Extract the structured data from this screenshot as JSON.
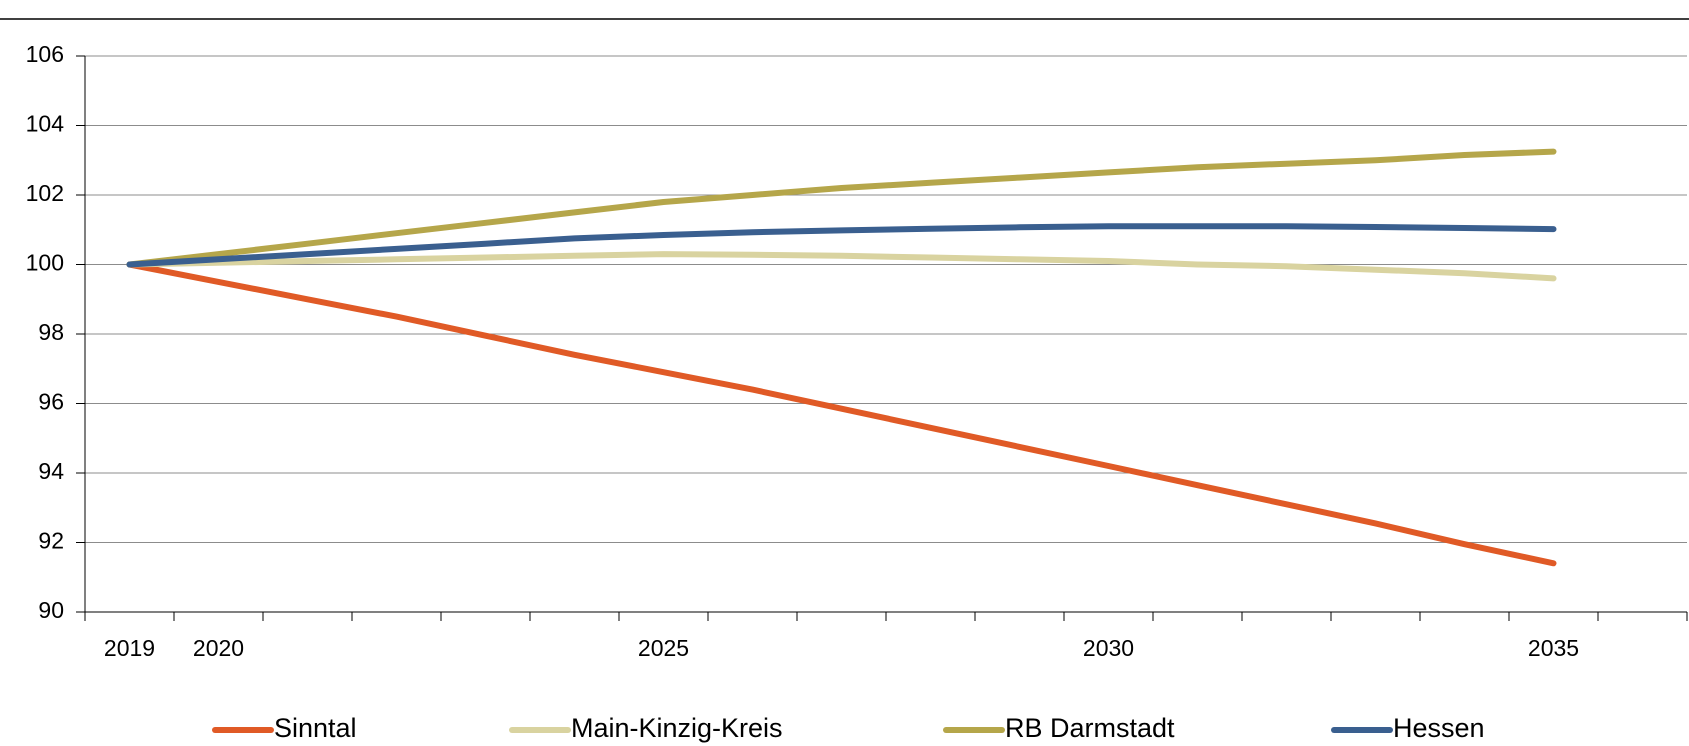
{
  "chart_data": {
    "type": "line",
    "categories": [
      "2019",
      "2020",
      null,
      null,
      null,
      null,
      "2025",
      null,
      null,
      null,
      null,
      "2030",
      null,
      null,
      null,
      null,
      "2035",
      null
    ],
    "series": [
      {
        "name": "Sinntal",
        "color": "#e05a26",
        "values": [
          100,
          99.5,
          99.0,
          98.5,
          97.95,
          97.4,
          96.9,
          96.4,
          95.85,
          95.3,
          94.75,
          94.2,
          93.65,
          93.1,
          92.55,
          91.95,
          91.4,
          null
        ]
      },
      {
        "name": "Main-Kinzig-Kreis",
        "color": "#d9d3a0",
        "values": [
          100,
          100.05,
          100.1,
          100.15,
          100.2,
          100.25,
          100.3,
          100.28,
          100.25,
          100.2,
          100.15,
          100.1,
          100.0,
          99.95,
          99.85,
          99.75,
          99.6,
          null
        ]
      },
      {
        "name": "RB Darmstadt",
        "color": "#b5a64a",
        "values": [
          100,
          100.3,
          100.6,
          100.9,
          101.2,
          101.5,
          101.8,
          102.0,
          102.2,
          102.35,
          102.5,
          102.65,
          102.8,
          102.9,
          103.0,
          103.15,
          103.25,
          null
        ]
      },
      {
        "name": "Hessen",
        "color": "#3a5f8f",
        "values": [
          100,
          100.15,
          100.3,
          100.45,
          100.6,
          100.75,
          100.85,
          100.93,
          100.98,
          101.03,
          101.07,
          101.1,
          101.1,
          101.1,
          101.08,
          101.05,
          101.02,
          null
        ]
      }
    ],
    "ylim": [
      90,
      106
    ],
    "yticks": [
      90,
      92,
      94,
      96,
      98,
      100,
      102,
      104,
      106
    ],
    "grid": true
  }
}
